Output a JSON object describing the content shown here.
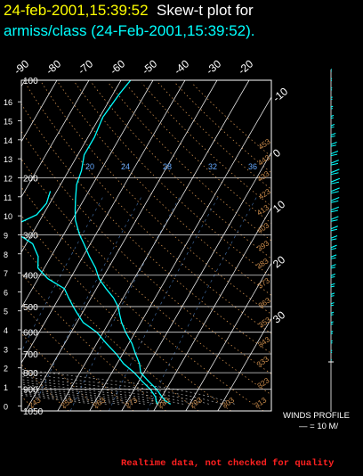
{
  "header": {
    "date_line": "24-feb-2001,15:39:52",
    "plot_label": "Skew-t plot for",
    "source_line": "armiss/class (24-Feb-2001,15:39:52)."
  },
  "footer": {
    "notice": "Realtime data, not checked for quality"
  },
  "winds": {
    "title": "WINDS PROFILE",
    "scale": "— = 10 M/"
  },
  "colors": {
    "background": "#000000",
    "header_date": "#ffff00",
    "header_label": "#ffffff",
    "source": "#00ffff",
    "profile": "#00ffff",
    "grid": "#ffffff",
    "isotherms": "#ffffff",
    "dry_adiabats": "#c88a4a",
    "moist_adiabats": "#b0b0b0",
    "mixing_ratio": "#66aaff",
    "footer": "#ff2020"
  },
  "chart_data": {
    "type": "line",
    "title": "Skew-t plot for",
    "y_axis": {
      "pressure_labels": [
        "100",
        "200",
        "300",
        "400",
        "500",
        "600",
        "700",
        "800",
        "900",
        "1050"
      ],
      "pressure_levels_hpa": [
        100,
        200,
        300,
        400,
        500,
        600,
        700,
        800,
        900,
        1050
      ],
      "pressure_range_hpa": [
        1050,
        100
      ],
      "log_scale": true,
      "height_labels": [
        "0",
        "1",
        "2",
        "3",
        "4",
        "5",
        "6",
        "7",
        "8",
        "9",
        "10",
        "11",
        "12",
        "13",
        "14",
        "15",
        "16"
      ]
    },
    "isotherm_labels": [
      "-90",
      "-80",
      "-70",
      "-60",
      "-50",
      "-40",
      "-30",
      "-20",
      "-10",
      "0",
      "10",
      "20",
      "30"
    ],
    "isotherm_values_c": [
      -90,
      -80,
      -70,
      -60,
      -50,
      -40,
      -30,
      -20,
      -10,
      0,
      10,
      20,
      30
    ],
    "dry_adiabat_labels": [
      "243",
      "253",
      "263",
      "273",
      "283",
      "293",
      "303",
      "313",
      "323",
      "333",
      "343",
      "353",
      "363",
      "373",
      "383",
      "393",
      "403",
      "413",
      "423",
      "433",
      "443",
      "453"
    ],
    "mixing_ratio_labels": [
      "20",
      "24",
      "28",
      "32",
      "36"
    ],
    "grid": true,
    "series": [
      {
        "values": [
          {
            "p": 1000,
            "t": 14
          },
          {
            "p": 980,
            "t": 12
          },
          {
            "p": 950,
            "t": 10
          },
          {
            "p": 900,
            "t": 7
          },
          {
            "p": 850,
            "t": 3
          },
          {
            "p": 800,
            "t": -1
          },
          {
            "p": 750,
            "t": -3
          },
          {
            "p": 700,
            "t": -6
          },
          {
            "p": 650,
            "t": -9
          },
          {
            "p": 600,
            "t": -13
          },
          {
            "p": 560,
            "t": -16
          },
          {
            "p": 530,
            "t": -18
          },
          {
            "p": 500,
            "t": -20
          },
          {
            "p": 470,
            "t": -23
          },
          {
            "p": 440,
            "t": -27
          },
          {
            "p": 410,
            "t": -31
          },
          {
            "p": 380,
            "t": -34
          },
          {
            "p": 350,
            "t": -38
          },
          {
            "p": 320,
            "t": -42
          },
          {
            "p": 300,
            "t": -45
          },
          {
            "p": 270,
            "t": -49
          },
          {
            "p": 250,
            "t": -51
          },
          {
            "p": 230,
            "t": -53
          },
          {
            "p": 210,
            "t": -55
          },
          {
            "p": 190,
            "t": -56
          },
          {
            "p": 170,
            "t": -58
          },
          {
            "p": 150,
            "t": -58
          },
          {
            "p": 130,
            "t": -59
          },
          {
            "p": 110,
            "t": -58
          },
          {
            "p": 100,
            "t": -57
          }
        ]
      },
      {
        "values": [
          {
            "p": 1000,
            "t": 10
          },
          {
            "p": 980,
            "t": 9
          },
          {
            "p": 950,
            "t": 8
          },
          {
            "p": 900,
            "t": 5
          },
          {
            "p": 850,
            "t": 1
          },
          {
            "p": 800,
            "t": -3
          },
          {
            "p": 750,
            "t": -8
          },
          {
            "p": 700,
            "t": -12
          },
          {
            "p": 650,
            "t": -17
          },
          {
            "p": 600,
            "t": -22
          },
          {
            "p": 560,
            "t": -28
          },
          {
            "p": 520,
            "t": -32
          },
          {
            "p": 500,
            "t": -34
          },
          {
            "p": 470,
            "t": -37
          },
          {
            "p": 440,
            "t": -40
          },
          {
            "p": 410,
            "t": -47
          },
          {
            "p": 380,
            "t": -52
          },
          {
            "p": 350,
            "t": -54
          },
          {
            "p": 320,
            "t": -58
          },
          {
            "p": 300,
            "t": -64
          },
          {
            "p": 280,
            "t": -67
          },
          {
            "p": 260,
            "t": -62
          },
          {
            "p": 240,
            "t": -61
          },
          {
            "p": 220,
            "t": -62
          }
        ]
      }
    ],
    "wind_profile": {
      "height_range_km": [
        0,
        16
      ],
      "speeds_ms": [
        4,
        6,
        8,
        10,
        12,
        14,
        16,
        18,
        20,
        22,
        25,
        28,
        30,
        32,
        35,
        38,
        40,
        42,
        44,
        45,
        43,
        40,
        36,
        30,
        24,
        18,
        14,
        10,
        8,
        6,
        5,
        4
      ]
    }
  }
}
